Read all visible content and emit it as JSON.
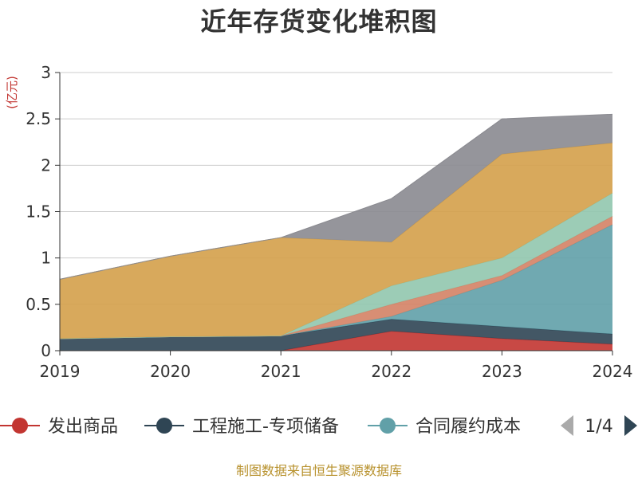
{
  "title": "近年存货变化堆积图",
  "source": "制图数据来自恒生聚源数据库",
  "legend": {
    "page": "1/4",
    "items": [
      {
        "label": "发出商品",
        "color": "#c23531"
      },
      {
        "label": "工程施工-专项储备",
        "color": "#2f4554"
      },
      {
        "label": "合同履约成本",
        "color": "#61a0a8"
      }
    ]
  },
  "chart_data": {
    "type": "area",
    "stacked": true,
    "ylabel": "(亿元)",
    "ylim": [
      0,
      3
    ],
    "yticks": [
      "0",
      "0.5",
      "1",
      "1.5",
      "2",
      "2.5",
      "3"
    ],
    "ytick_values": [
      0,
      0.5,
      1,
      1.5,
      2,
      2.5,
      3
    ],
    "x": [
      "2019",
      "2020",
      "2021",
      "2022",
      "2023",
      "2024"
    ],
    "grid": true,
    "legend_position": "bottom",
    "series": [
      {
        "name": "发出商品",
        "color": "#c23531",
        "values": [
          0,
          0,
          0,
          0.21,
          0.13,
          0.07
        ]
      },
      {
        "name": "工程施工-专项储备",
        "color": "#2f4554",
        "values": [
          0.13,
          0.15,
          0.16,
          0.13,
          0.13,
          0.11
        ]
      },
      {
        "name": "合同履约成本",
        "color": "#61a0a8",
        "values": [
          0,
          0,
          0,
          0.03,
          0.5,
          1.18
        ]
      },
      {
        "color": "#d48265",
        "values": [
          0,
          0,
          0,
          0.13,
          0.05,
          0.09
        ]
      },
      {
        "color": "#91c7ae",
        "values": [
          0,
          0,
          0,
          0.2,
          0.19,
          0.25
        ]
      },
      {
        "color": "#d4a04a",
        "values": [
          0.64,
          0.87,
          1.06,
          0.47,
          1.12,
          0.54
        ]
      },
      {
        "color": "#8a8a90",
        "values": [
          0,
          0,
          0,
          0.47,
          0.38,
          0.31
        ]
      }
    ]
  }
}
